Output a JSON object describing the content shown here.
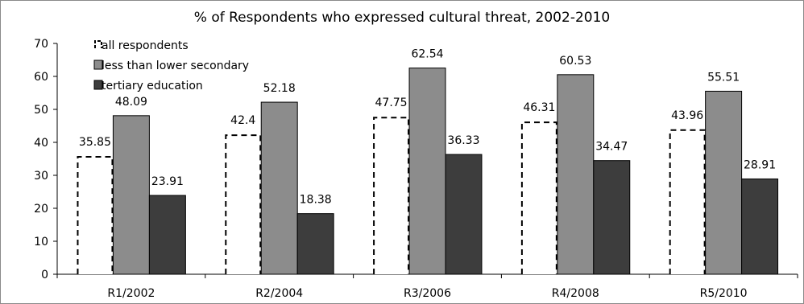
{
  "chart_data": {
    "type": "bar",
    "title": "% of Respondents who expressed cultural threat, 2002-2010",
    "xlabel": "",
    "ylabel": "",
    "ylim": [
      0,
      70
    ],
    "yticks": [
      "0",
      "10",
      "20",
      "30",
      "40",
      "50",
      "60",
      "70"
    ],
    "grid": false,
    "legend_position": "top-left",
    "categories": [
      "R1/2002",
      "R2/2004",
      "R3/2006",
      "R4/2008",
      "R5/2010"
    ],
    "series": [
      {
        "name": "all respondents",
        "values": [
          35.85,
          42.4,
          47.75,
          46.31,
          43.96
        ],
        "labels": [
          "35.85",
          "42.4",
          "47.75",
          "46.31",
          "43.96"
        ],
        "fill": "#ffffff",
        "stroke": "#000000",
        "dashed": true
      },
      {
        "name": "less than lower secondary",
        "values": [
          48.09,
          52.18,
          62.54,
          60.53,
          55.51
        ],
        "labels": [
          "48.09",
          "52.18",
          "62.54",
          "60.53",
          "55.51"
        ],
        "fill": "#8c8c8c",
        "stroke": "#000000",
        "dashed": false
      },
      {
        "name": "tertiary education",
        "values": [
          23.91,
          18.38,
          36.33,
          34.47,
          28.91
        ],
        "labels": [
          "23.91",
          "18.38",
          "36.33",
          "34.47",
          "28.91"
        ],
        "fill": "#3d3d3d",
        "stroke": "#000000",
        "dashed": false
      }
    ]
  }
}
